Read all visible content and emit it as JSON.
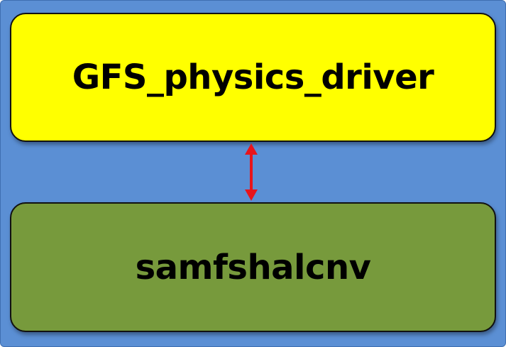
{
  "diagram": {
    "background_color": "#5b8fd4",
    "arrow_color": "#e8141b",
    "arrow_direction": "bidirectional",
    "nodes": [
      {
        "label": "GFS_physics_driver",
        "color": "#ffff00"
      },
      {
        "label": "samfshalcnv",
        "color": "#779a3c"
      }
    ]
  }
}
